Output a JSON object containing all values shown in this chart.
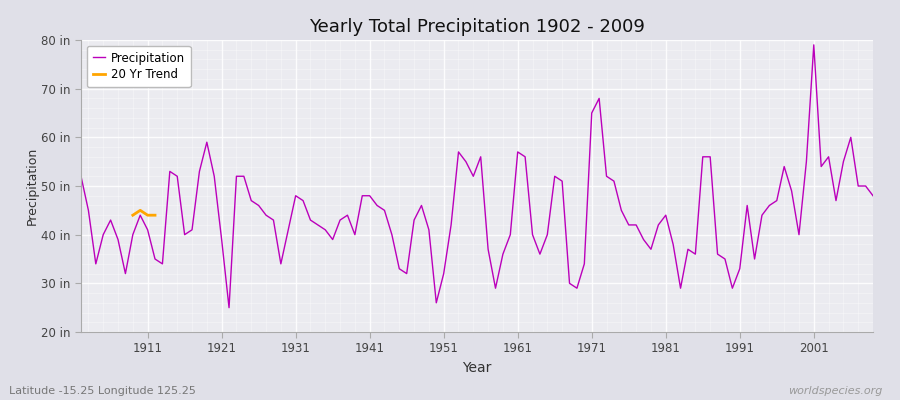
{
  "title": "Yearly Total Precipitation 1902 - 2009",
  "xlabel": "Year",
  "ylabel": "Precipitation",
  "precip_color": "#bb00bb",
  "trend_color": "#ffa500",
  "fig_bg": "#e0e0e8",
  "plot_bg": "#ebebf0",
  "ylim": [
    20,
    80
  ],
  "yticks": [
    20,
    30,
    40,
    50,
    60,
    70,
    80
  ],
  "ytick_labels": [
    "20 in",
    "30 in",
    "40 in",
    "50 in",
    "60 in",
    "70 in",
    "80 in"
  ],
  "xticks": [
    1911,
    1921,
    1931,
    1941,
    1951,
    1961,
    1971,
    1981,
    1991,
    2001
  ],
  "xlim": [
    1902,
    2009
  ],
  "years": [
    1902,
    1903,
    1904,
    1905,
    1906,
    1907,
    1908,
    1909,
    1910,
    1911,
    1912,
    1913,
    1914,
    1915,
    1916,
    1917,
    1918,
    1919,
    1920,
    1921,
    1922,
    1923,
    1924,
    1925,
    1926,
    1927,
    1928,
    1929,
    1930,
    1931,
    1932,
    1933,
    1934,
    1935,
    1936,
    1937,
    1938,
    1939,
    1940,
    1941,
    1942,
    1943,
    1944,
    1945,
    1946,
    1947,
    1948,
    1949,
    1950,
    1951,
    1952,
    1953,
    1954,
    1955,
    1956,
    1957,
    1958,
    1959,
    1960,
    1961,
    1962,
    1963,
    1964,
    1965,
    1966,
    1967,
    1968,
    1969,
    1970,
    1971,
    1972,
    1973,
    1974,
    1975,
    1976,
    1977,
    1978,
    1979,
    1980,
    1981,
    1982,
    1983,
    1984,
    1985,
    1986,
    1987,
    1988,
    1989,
    1990,
    1991,
    1992,
    1993,
    1994,
    1995,
    1996,
    1997,
    1998,
    1999,
    2000,
    2001,
    2002,
    2003,
    2004,
    2005,
    2006,
    2007,
    2008,
    2009
  ],
  "precipitation": [
    52,
    45,
    34,
    40,
    43,
    39,
    32,
    40,
    44,
    41,
    35,
    34,
    53,
    52,
    40,
    41,
    53,
    59,
    52,
    39,
    25,
    52,
    52,
    47,
    46,
    44,
    43,
    34,
    41,
    48,
    47,
    43,
    42,
    41,
    39,
    43,
    44,
    40,
    48,
    48,
    46,
    45,
    40,
    33,
    32,
    43,
    46,
    41,
    26,
    32,
    42,
    57,
    55,
    52,
    56,
    37,
    29,
    36,
    40,
    57,
    56,
    40,
    36,
    40,
    52,
    51,
    30,
    29,
    34,
    65,
    68,
    52,
    51,
    45,
    42,
    42,
    39,
    37,
    42,
    44,
    38,
    29,
    37,
    36,
    56,
    56,
    36,
    35,
    29,
    33,
    46,
    35,
    44,
    46,
    47,
    54,
    49,
    40,
    55,
    79,
    54,
    56,
    47,
    55,
    60,
    50,
    50,
    48
  ],
  "trend_years": [
    1909,
    1910,
    1911,
    1912
  ],
  "trend_values": [
    44,
    45,
    44,
    44
  ],
  "legend_labels": [
    "Precipitation",
    "20 Yr Trend"
  ],
  "watermark": "worldspecies.org",
  "coord_label": "Latitude -15.25 Longitude 125.25"
}
